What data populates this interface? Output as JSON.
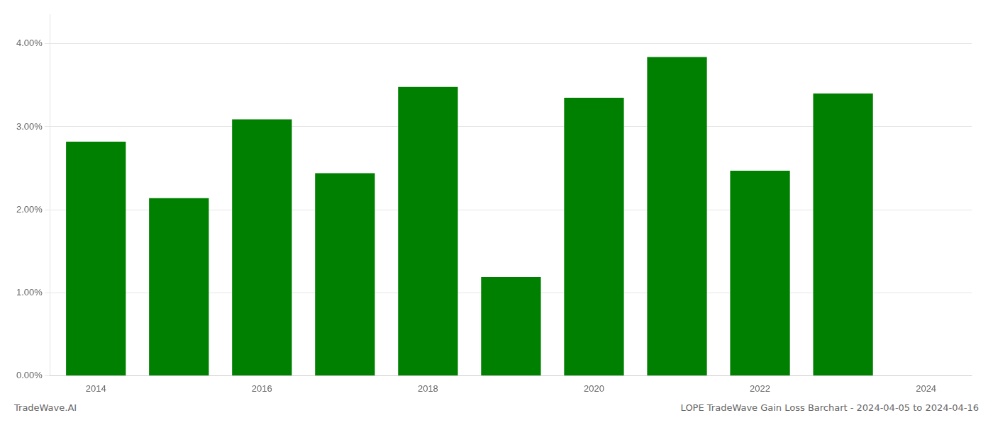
{
  "chart_data": {
    "type": "bar",
    "x": [
      2014,
      2015,
      2016,
      2017,
      2018,
      2019,
      2020,
      2021,
      2022,
      2023
    ],
    "values": [
      0.0282,
      0.0214,
      0.0309,
      0.0244,
      0.0348,
      0.0119,
      0.0335,
      0.0384,
      0.0247,
      0.034
    ],
    "color": "#008000",
    "xlim": [
      2013.45,
      2024.55
    ],
    "xticks": [
      2014,
      2016,
      2018,
      2020,
      2022,
      2024
    ],
    "ylim": [
      0,
      0.0435
    ],
    "yticks": [
      {
        "value": 0.0,
        "label": "0.00%"
      },
      {
        "value": 0.01,
        "label": "1.00%"
      },
      {
        "value": 0.02,
        "label": "2.00%"
      },
      {
        "value": 0.03,
        "label": "3.00%"
      },
      {
        "value": 0.04,
        "label": "4.00%"
      }
    ],
    "grid": true,
    "annotations": [
      "TradeWave.AI",
      "LOPE TradeWave Gain Loss Barchart - 2024-04-05 to 2024-04-16"
    ]
  }
}
